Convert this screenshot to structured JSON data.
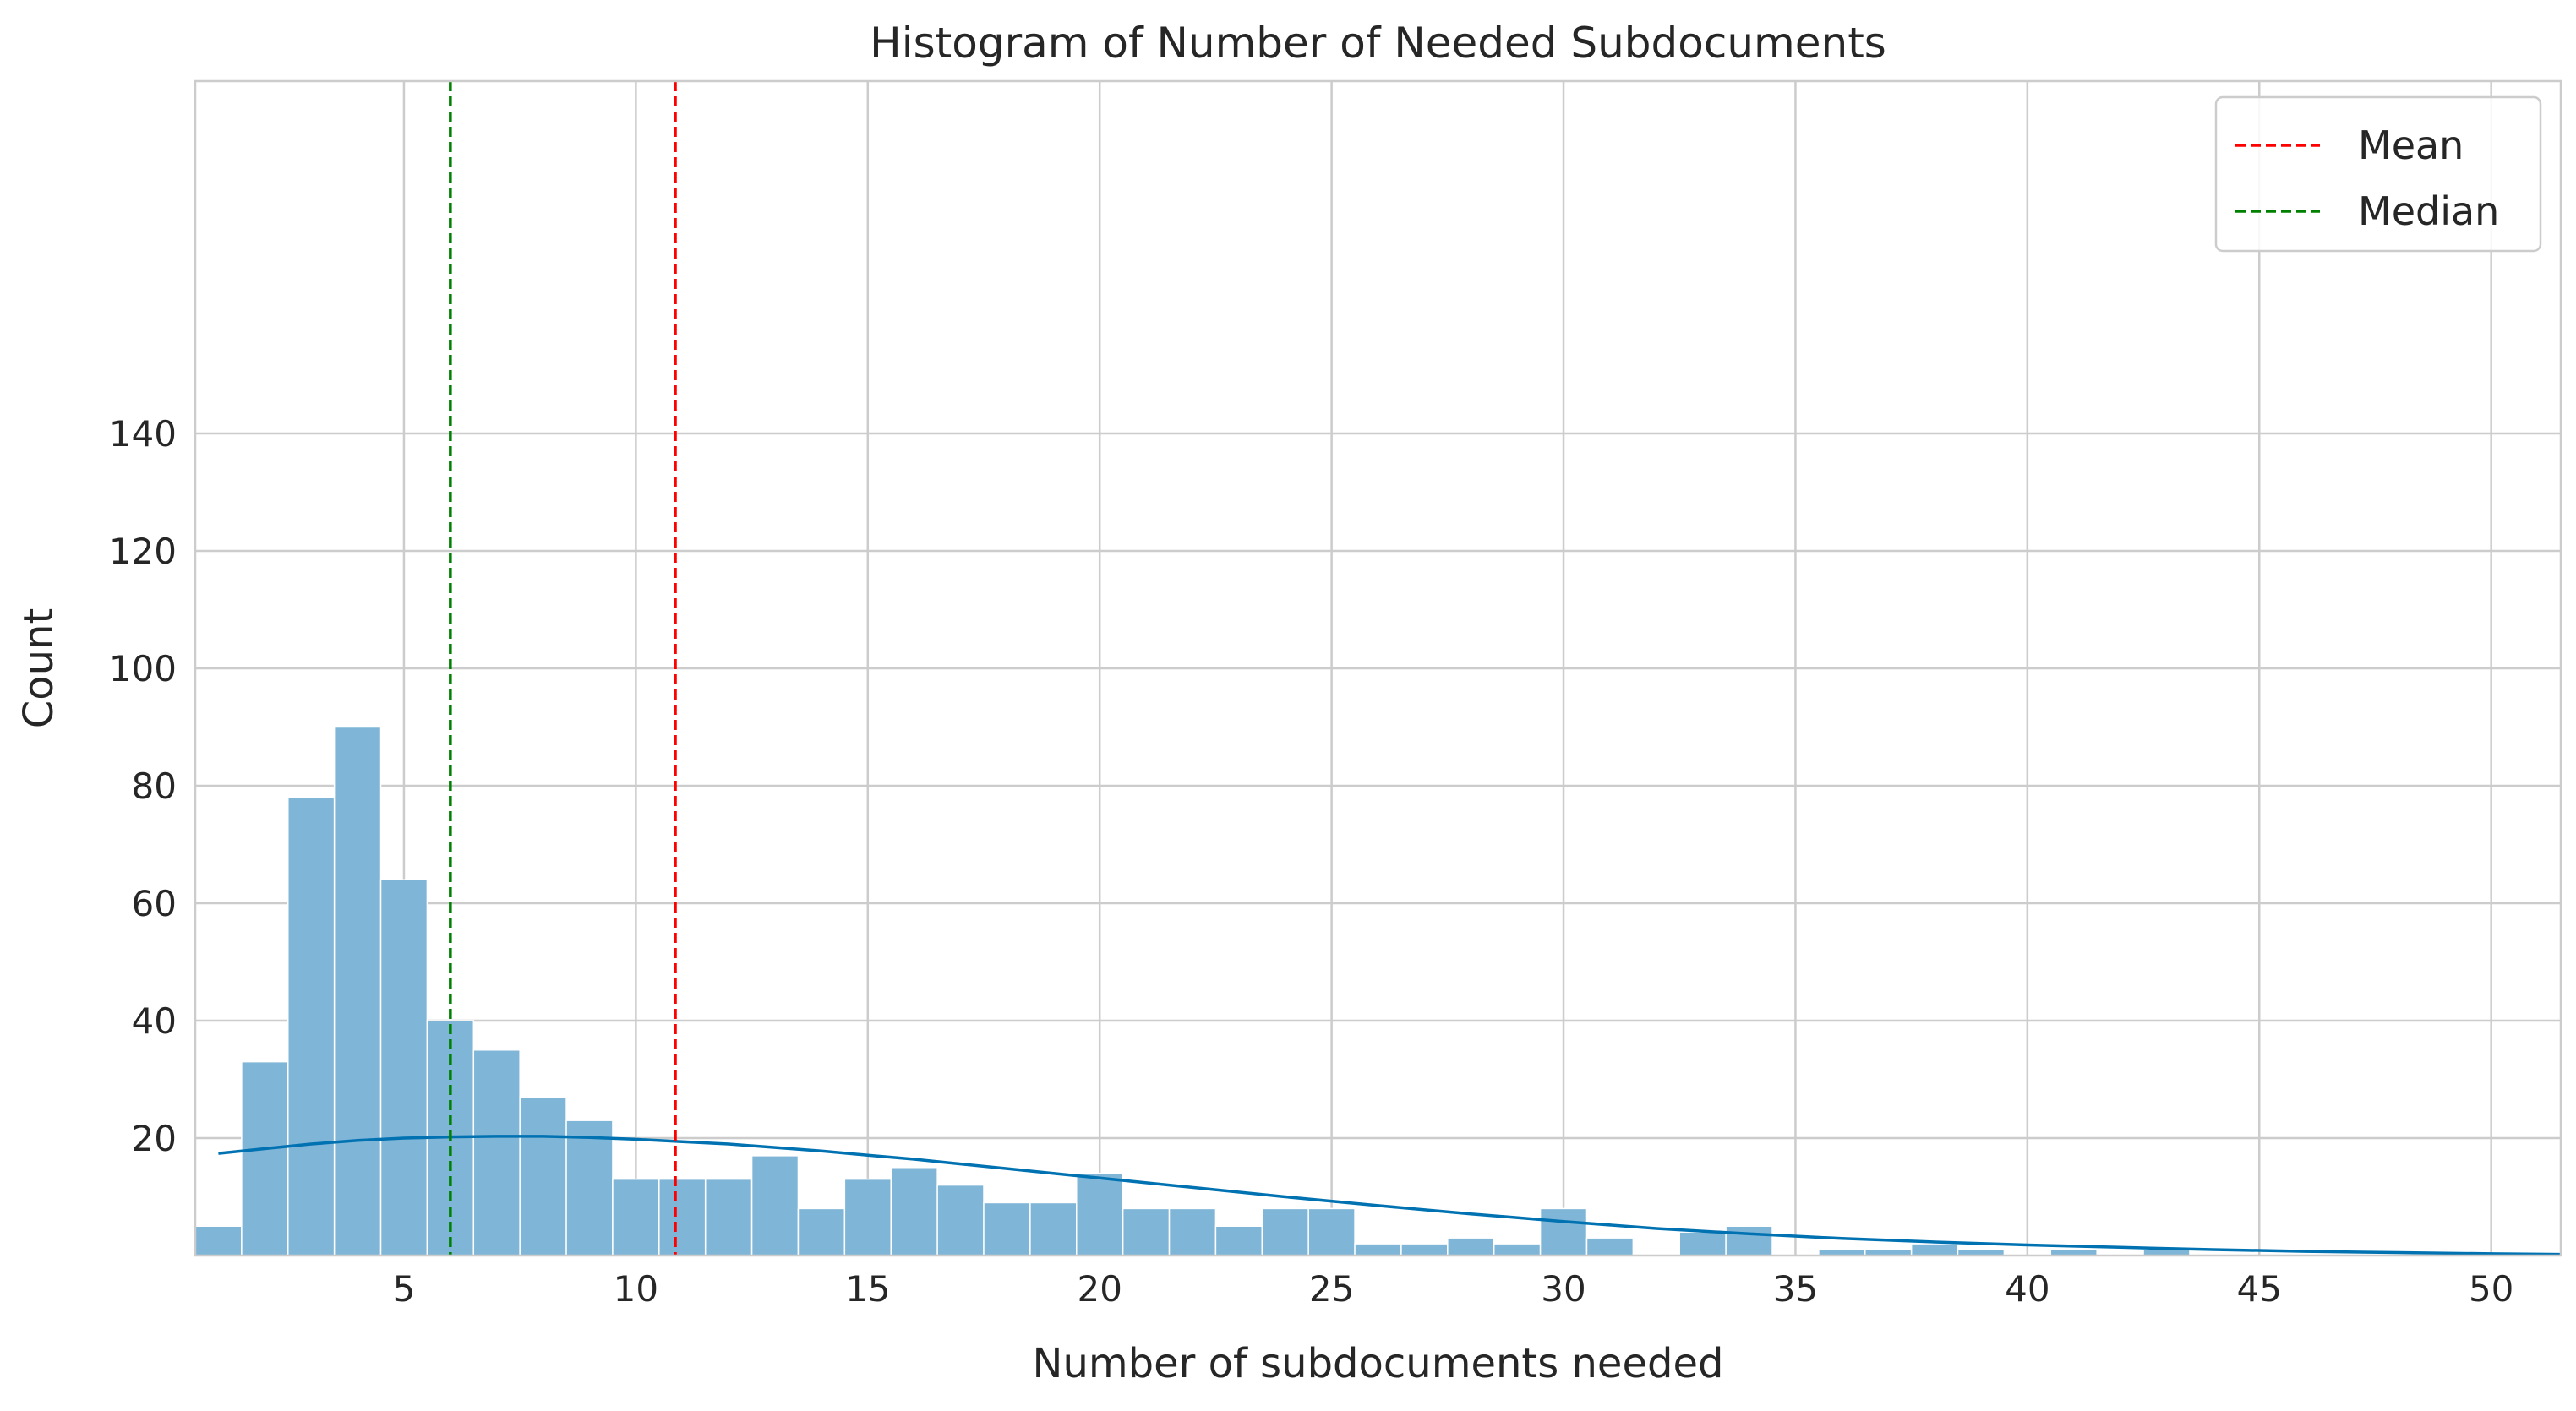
{
  "chart_data": {
    "type": "bar",
    "title": "Histogram of Number of Needed Subdocuments",
    "xlabel": "Number of subdocuments needed",
    "ylabel": "Count",
    "xlim": [
      0.5,
      51.5
    ],
    "ylim": [
      0,
      200
    ],
    "xticks": [
      5,
      10,
      15,
      20,
      25,
      30,
      35,
      40,
      45,
      50
    ],
    "yticks": [
      20,
      40,
      60,
      80,
      100,
      120,
      140
    ],
    "grid": true,
    "legend": "top-right",
    "bins": {
      "start": 0.5,
      "width": 1,
      "counts": [
        5,
        33,
        78,
        90,
        64,
        40,
        35,
        27,
        23,
        13,
        13,
        13,
        17,
        8,
        13,
        15,
        12,
        9,
        9,
        14,
        8,
        8,
        5,
        8,
        8,
        2,
        2,
        3,
        2,
        8,
        3,
        0,
        4,
        5,
        0,
        1,
        1,
        2,
        1,
        0,
        1,
        0,
        1,
        0,
        0,
        0,
        0,
        0,
        0,
        0,
        0
      ]
    },
    "series": [
      {
        "name": "",
        "type": "line",
        "color": "#0072b2",
        "x": [
          1,
          2,
          3,
          4,
          5,
          6,
          7,
          8,
          9,
          10,
          11,
          12,
          13,
          14,
          15,
          16,
          17,
          18,
          19,
          20,
          22,
          24,
          26,
          28,
          30,
          32,
          34,
          36,
          38,
          40,
          42,
          44,
          46,
          48,
          50,
          51.5
        ],
        "y": [
          17.4,
          18.2,
          19.0,
          19.6,
          20.0,
          20.2,
          20.3,
          20.3,
          20.1,
          19.8,
          19.4,
          19.0,
          18.4,
          17.8,
          17.1,
          16.4,
          15.6,
          14.8,
          14.0,
          13.2,
          11.6,
          10.0,
          8.5,
          7.1,
          5.8,
          4.6,
          3.7,
          2.9,
          2.3,
          1.8,
          1.4,
          1.0,
          0.7,
          0.5,
          0.3,
          0.2
        ]
      }
    ],
    "reference_lines": [
      {
        "name": "Mean",
        "x": 10.85,
        "color": "#ff0000"
      },
      {
        "name": "Median",
        "x": 6,
        "color": "#008000"
      }
    ],
    "bar_color": "#7fb5d7"
  }
}
